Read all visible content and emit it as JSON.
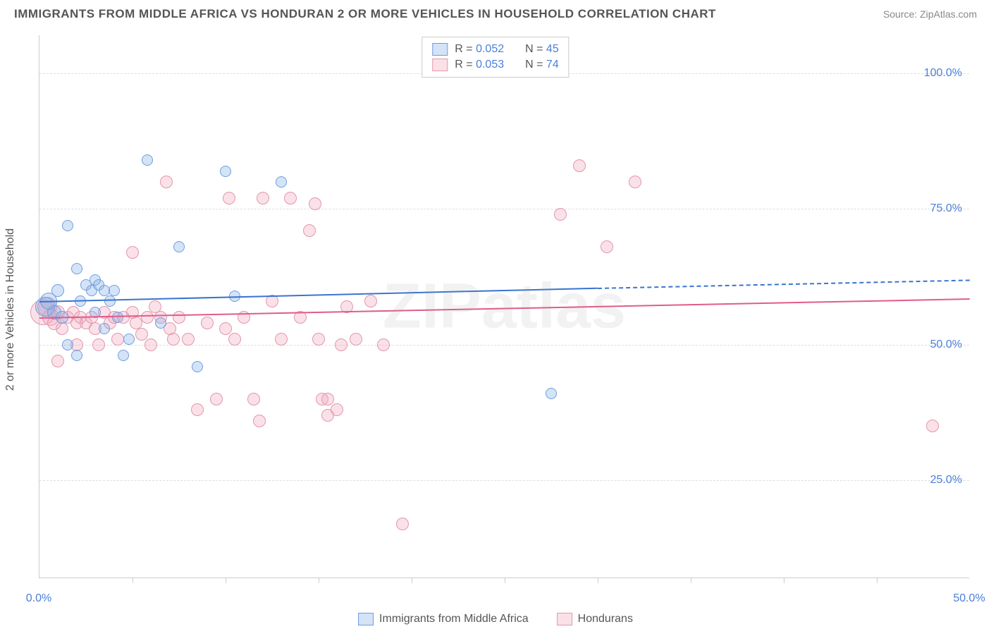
{
  "title": "IMMIGRANTS FROM MIDDLE AFRICA VS HONDURAN 2 OR MORE VEHICLES IN HOUSEHOLD CORRELATION CHART",
  "source": "Source: ZipAtlas.com",
  "watermark": "ZIPatlas",
  "yaxis_label": "2 or more Vehicles in Household",
  "chart": {
    "type": "scatter",
    "x_range": [
      0,
      50
    ],
    "y_range": [
      7,
      107
    ],
    "y_ticks": [
      25,
      50,
      75,
      100
    ],
    "y_tick_labels": [
      "25.0%",
      "50.0%",
      "75.0%",
      "100.0%"
    ],
    "x_ticks": [
      0,
      25,
      50
    ],
    "x_tick_labels": [
      "0.0%",
      "",
      "50.0%"
    ],
    "x_minor_ticks": [
      5,
      10,
      15,
      20,
      25,
      30,
      35,
      40,
      45
    ],
    "background_color": "#ffffff",
    "grid_color": "#dddddd",
    "axis_color": "#cccccc"
  },
  "series": [
    {
      "name": "Immigrants from Middle Africa",
      "fill": "rgba(135,176,232,0.35)",
      "stroke": "#6b9fe0",
      "line_color": "#3a74d0",
      "r_value": "0.052",
      "n_value": "45",
      "trend": {
        "x1": 0,
        "y1": 58,
        "x2": 30,
        "y2": 60.5,
        "x2_dash": 50,
        "y2_dash": 62
      },
      "points": [
        {
          "x": 0.3,
          "y": 57,
          "r": 14
        },
        {
          "x": 0.5,
          "y": 58,
          "r": 12
        },
        {
          "x": 0.8,
          "y": 56,
          "r": 10
        },
        {
          "x": 1.0,
          "y": 60,
          "r": 9
        },
        {
          "x": 1.2,
          "y": 55,
          "r": 9
        },
        {
          "x": 1.5,
          "y": 72,
          "r": 8
        },
        {
          "x": 1.5,
          "y": 50,
          "r": 8
        },
        {
          "x": 2.0,
          "y": 64,
          "r": 8
        },
        {
          "x": 2.2,
          "y": 58,
          "r": 8
        },
        {
          "x": 2.5,
          "y": 61,
          "r": 8
        },
        {
          "x": 2.0,
          "y": 48,
          "r": 8
        },
        {
          "x": 2.8,
          "y": 60,
          "r": 8
        },
        {
          "x": 3.0,
          "y": 62,
          "r": 8
        },
        {
          "x": 3.0,
          "y": 56,
          "r": 8
        },
        {
          "x": 3.2,
          "y": 61,
          "r": 8
        },
        {
          "x": 3.5,
          "y": 60,
          "r": 8
        },
        {
          "x": 3.5,
          "y": 53,
          "r": 8
        },
        {
          "x": 3.8,
          "y": 58,
          "r": 8
        },
        {
          "x": 4.0,
          "y": 60,
          "r": 8
        },
        {
          "x": 4.2,
          "y": 55,
          "r": 8
        },
        {
          "x": 4.5,
          "y": 48,
          "r": 8
        },
        {
          "x": 4.8,
          "y": 51,
          "r": 8
        },
        {
          "x": 5.8,
          "y": 84,
          "r": 8
        },
        {
          "x": 6.5,
          "y": 54,
          "r": 8
        },
        {
          "x": 7.5,
          "y": 68,
          "r": 8
        },
        {
          "x": 8.5,
          "y": 46,
          "r": 8
        },
        {
          "x": 10.0,
          "y": 82,
          "r": 8
        },
        {
          "x": 10.5,
          "y": 59,
          "r": 8
        },
        {
          "x": 13.0,
          "y": 80,
          "r": 8
        },
        {
          "x": 27.5,
          "y": 41,
          "r": 8
        }
      ]
    },
    {
      "name": "Hondurans",
      "fill": "rgba(242,168,188,0.35)",
      "stroke": "#e396ad",
      "line_color": "#e05c8a",
      "r_value": "0.053",
      "n_value": "74",
      "trend": {
        "x1": 0,
        "y1": 55,
        "x2": 50,
        "y2": 58.5
      },
      "points": [
        {
          "x": 0.2,
          "y": 56,
          "r": 18
        },
        {
          "x": 0.4,
          "y": 57,
          "r": 14
        },
        {
          "x": 0.6,
          "y": 55,
          "r": 12
        },
        {
          "x": 0.8,
          "y": 54,
          "r": 10
        },
        {
          "x": 1.0,
          "y": 56,
          "r": 10
        },
        {
          "x": 1.0,
          "y": 47,
          "r": 9
        },
        {
          "x": 1.2,
          "y": 53,
          "r": 9
        },
        {
          "x": 1.5,
          "y": 55,
          "r": 9
        },
        {
          "x": 1.8,
          "y": 56,
          "r": 9
        },
        {
          "x": 2.0,
          "y": 54,
          "r": 9
        },
        {
          "x": 2.2,
          "y": 55,
          "r": 9
        },
        {
          "x": 2.5,
          "y": 54,
          "r": 9
        },
        {
          "x": 2.0,
          "y": 50,
          "r": 9
        },
        {
          "x": 2.8,
          "y": 55,
          "r": 9
        },
        {
          "x": 3.0,
          "y": 53,
          "r": 9
        },
        {
          "x": 3.2,
          "y": 50,
          "r": 9
        },
        {
          "x": 3.5,
          "y": 56,
          "r": 9
        },
        {
          "x": 3.8,
          "y": 54,
          "r": 9
        },
        {
          "x": 4.0,
          "y": 55,
          "r": 9
        },
        {
          "x": 4.2,
          "y": 51,
          "r": 9
        },
        {
          "x": 4.5,
          "y": 55,
          "r": 9
        },
        {
          "x": 5.0,
          "y": 67,
          "r": 9
        },
        {
          "x": 5.0,
          "y": 56,
          "r": 9
        },
        {
          "x": 5.2,
          "y": 54,
          "r": 9
        },
        {
          "x": 5.5,
          "y": 52,
          "r": 9
        },
        {
          "x": 5.8,
          "y": 55,
          "r": 9
        },
        {
          "x": 6.0,
          "y": 50,
          "r": 9
        },
        {
          "x": 6.2,
          "y": 57,
          "r": 9
        },
        {
          "x": 6.5,
          "y": 55,
          "r": 9
        },
        {
          "x": 6.8,
          "y": 80,
          "r": 9
        },
        {
          "x": 7.0,
          "y": 53,
          "r": 9
        },
        {
          "x": 7.2,
          "y": 51,
          "r": 9
        },
        {
          "x": 7.5,
          "y": 55,
          "r": 9
        },
        {
          "x": 8.0,
          "y": 51,
          "r": 9
        },
        {
          "x": 8.5,
          "y": 38,
          "r": 9
        },
        {
          "x": 9.0,
          "y": 54,
          "r": 9
        },
        {
          "x": 9.5,
          "y": 40,
          "r": 9
        },
        {
          "x": 10.0,
          "y": 53,
          "r": 9
        },
        {
          "x": 10.2,
          "y": 77,
          "r": 9
        },
        {
          "x": 10.5,
          "y": 51,
          "r": 9
        },
        {
          "x": 11.0,
          "y": 55,
          "r": 9
        },
        {
          "x": 11.5,
          "y": 40,
          "r": 9
        },
        {
          "x": 11.8,
          "y": 36,
          "r": 9
        },
        {
          "x": 12.0,
          "y": 77,
          "r": 9
        },
        {
          "x": 12.5,
          "y": 58,
          "r": 9
        },
        {
          "x": 13.0,
          "y": 51,
          "r": 9
        },
        {
          "x": 13.5,
          "y": 77,
          "r": 9
        },
        {
          "x": 14.0,
          "y": 55,
          "r": 9
        },
        {
          "x": 14.5,
          "y": 71,
          "r": 9
        },
        {
          "x": 14.8,
          "y": 76,
          "r": 9
        },
        {
          "x": 15.0,
          "y": 51,
          "r": 9
        },
        {
          "x": 15.2,
          "y": 40,
          "r": 9
        },
        {
          "x": 15.5,
          "y": 40,
          "r": 9
        },
        {
          "x": 15.5,
          "y": 37,
          "r": 9
        },
        {
          "x": 16.0,
          "y": 38,
          "r": 9
        },
        {
          "x": 16.2,
          "y": 50,
          "r": 9
        },
        {
          "x": 16.5,
          "y": 57,
          "r": 9
        },
        {
          "x": 17.0,
          "y": 51,
          "r": 9
        },
        {
          "x": 17.8,
          "y": 58,
          "r": 9
        },
        {
          "x": 18.5,
          "y": 50,
          "r": 9
        },
        {
          "x": 19.5,
          "y": 17,
          "r": 9
        },
        {
          "x": 28.0,
          "y": 74,
          "r": 9
        },
        {
          "x": 29.0,
          "y": 83,
          "r": 9
        },
        {
          "x": 30.5,
          "y": 68,
          "r": 9
        },
        {
          "x": 32.0,
          "y": 80,
          "r": 9
        },
        {
          "x": 48.0,
          "y": 35,
          "r": 9
        }
      ]
    }
  ]
}
